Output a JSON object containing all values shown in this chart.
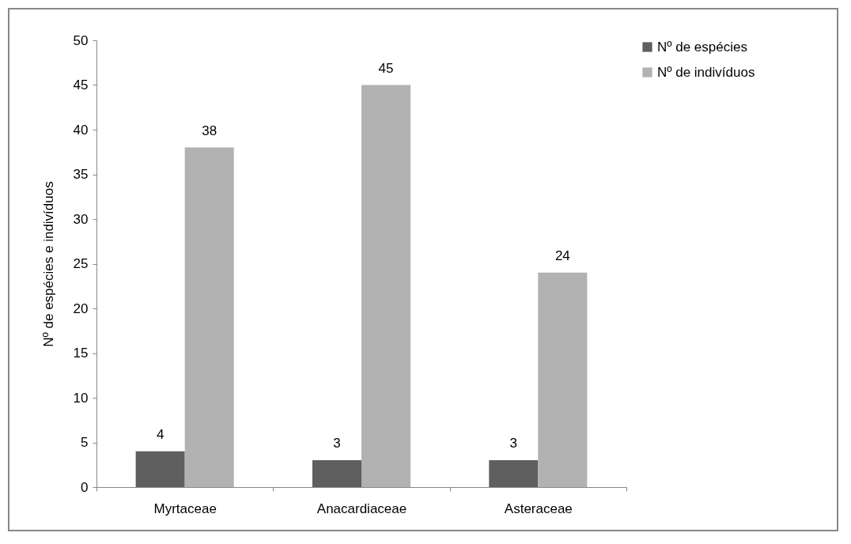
{
  "chart_data": {
    "type": "bar",
    "ylabel": "Nº de espécies e indivíduos",
    "categories": [
      "Myrtaceae",
      "Anacardiaceae",
      "Asteraceae"
    ],
    "series": [
      {
        "name": "Nº de espécies",
        "color": "#5f5f5f",
        "values": [
          4,
          3,
          3
        ]
      },
      {
        "name": "Nº de indivíduos",
        "color": "#b2b2b2",
        "values": [
          38,
          45,
          24
        ]
      }
    ],
    "ylim": [
      0,
      50
    ],
    "yticks": [
      0,
      5,
      10,
      15,
      20,
      25,
      30,
      35,
      40,
      45,
      50
    ],
    "grid": false,
    "legend": "right",
    "data_labels": true
  }
}
